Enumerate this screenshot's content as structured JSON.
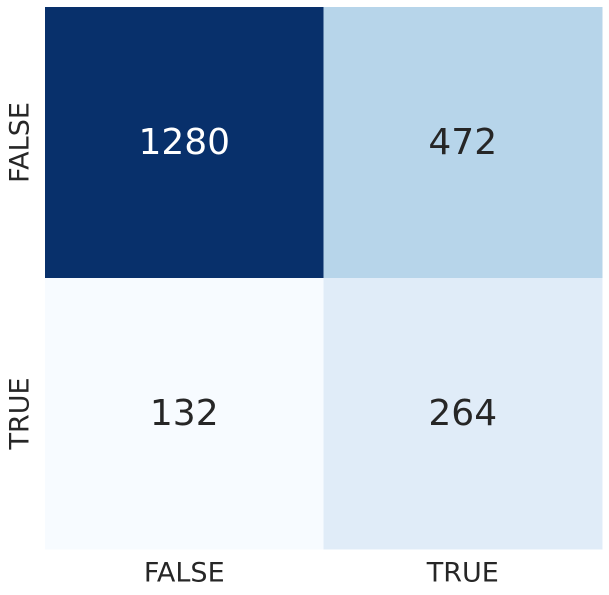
{
  "chart_data": {
    "type": "heatmap",
    "title": "",
    "xlabel": "",
    "ylabel": "",
    "x_categories": [
      "FALSE",
      "TRUE"
    ],
    "y_categories": [
      "FALSE",
      "TRUE"
    ],
    "values": [
      [
        1280,
        472
      ],
      [
        132,
        264
      ]
    ],
    "colormap": "Blues",
    "color_range": [
      132,
      1280
    ],
    "colorbar": false,
    "grid": false
  },
  "colors": {
    "low": "#f7fbff",
    "high": "#08306b",
    "text_on_dark": "#ffffff",
    "text_on_light": "#262626"
  }
}
